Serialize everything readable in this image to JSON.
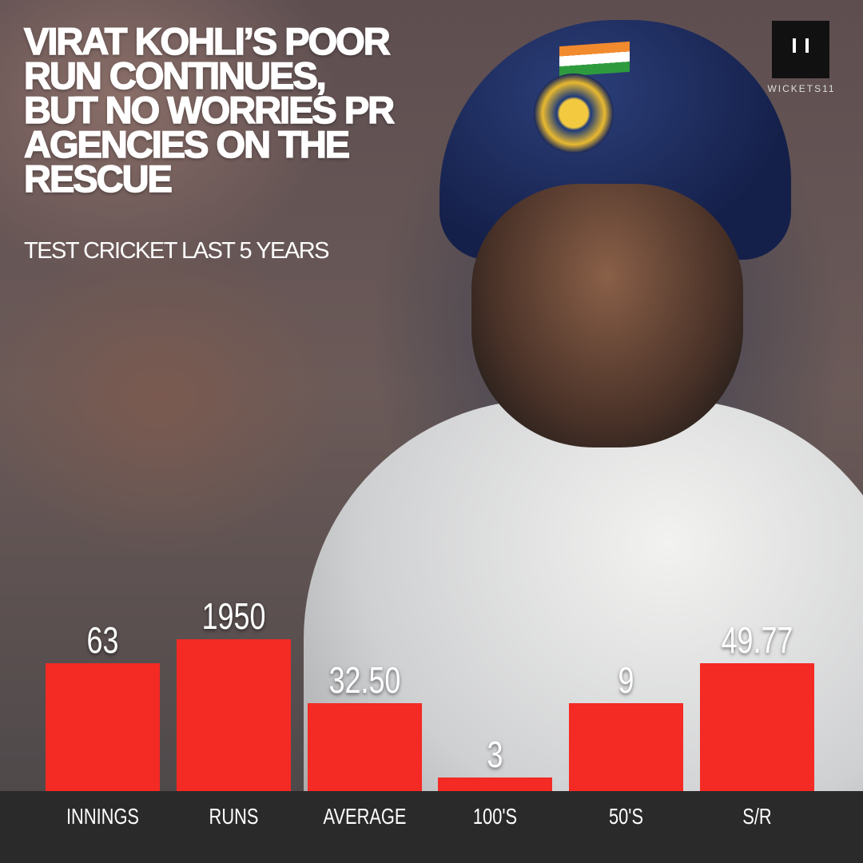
{
  "header": {
    "title_lines": [
      "VIRAT KOHLI’S POOR",
      "RUN CONTINUES,",
      "BUT NO WORRIES PR",
      "AGENCIES ON THE",
      "RESCUE"
    ],
    "subtitle": "TEST CRICKET LAST 5 YEARS"
  },
  "brand": {
    "name": "WICKETS11"
  },
  "stats": [
    {
      "label": "INNINGS",
      "value": "63"
    },
    {
      "label": "RUNS",
      "value": "1950"
    },
    {
      "label": "AVERAGE",
      "value": "32.50"
    },
    {
      "label": "100'S",
      "value": "3"
    },
    {
      "label": "50'S",
      "value": "9"
    },
    {
      "label": "S/R",
      "value": "49.77"
    }
  ]
}
